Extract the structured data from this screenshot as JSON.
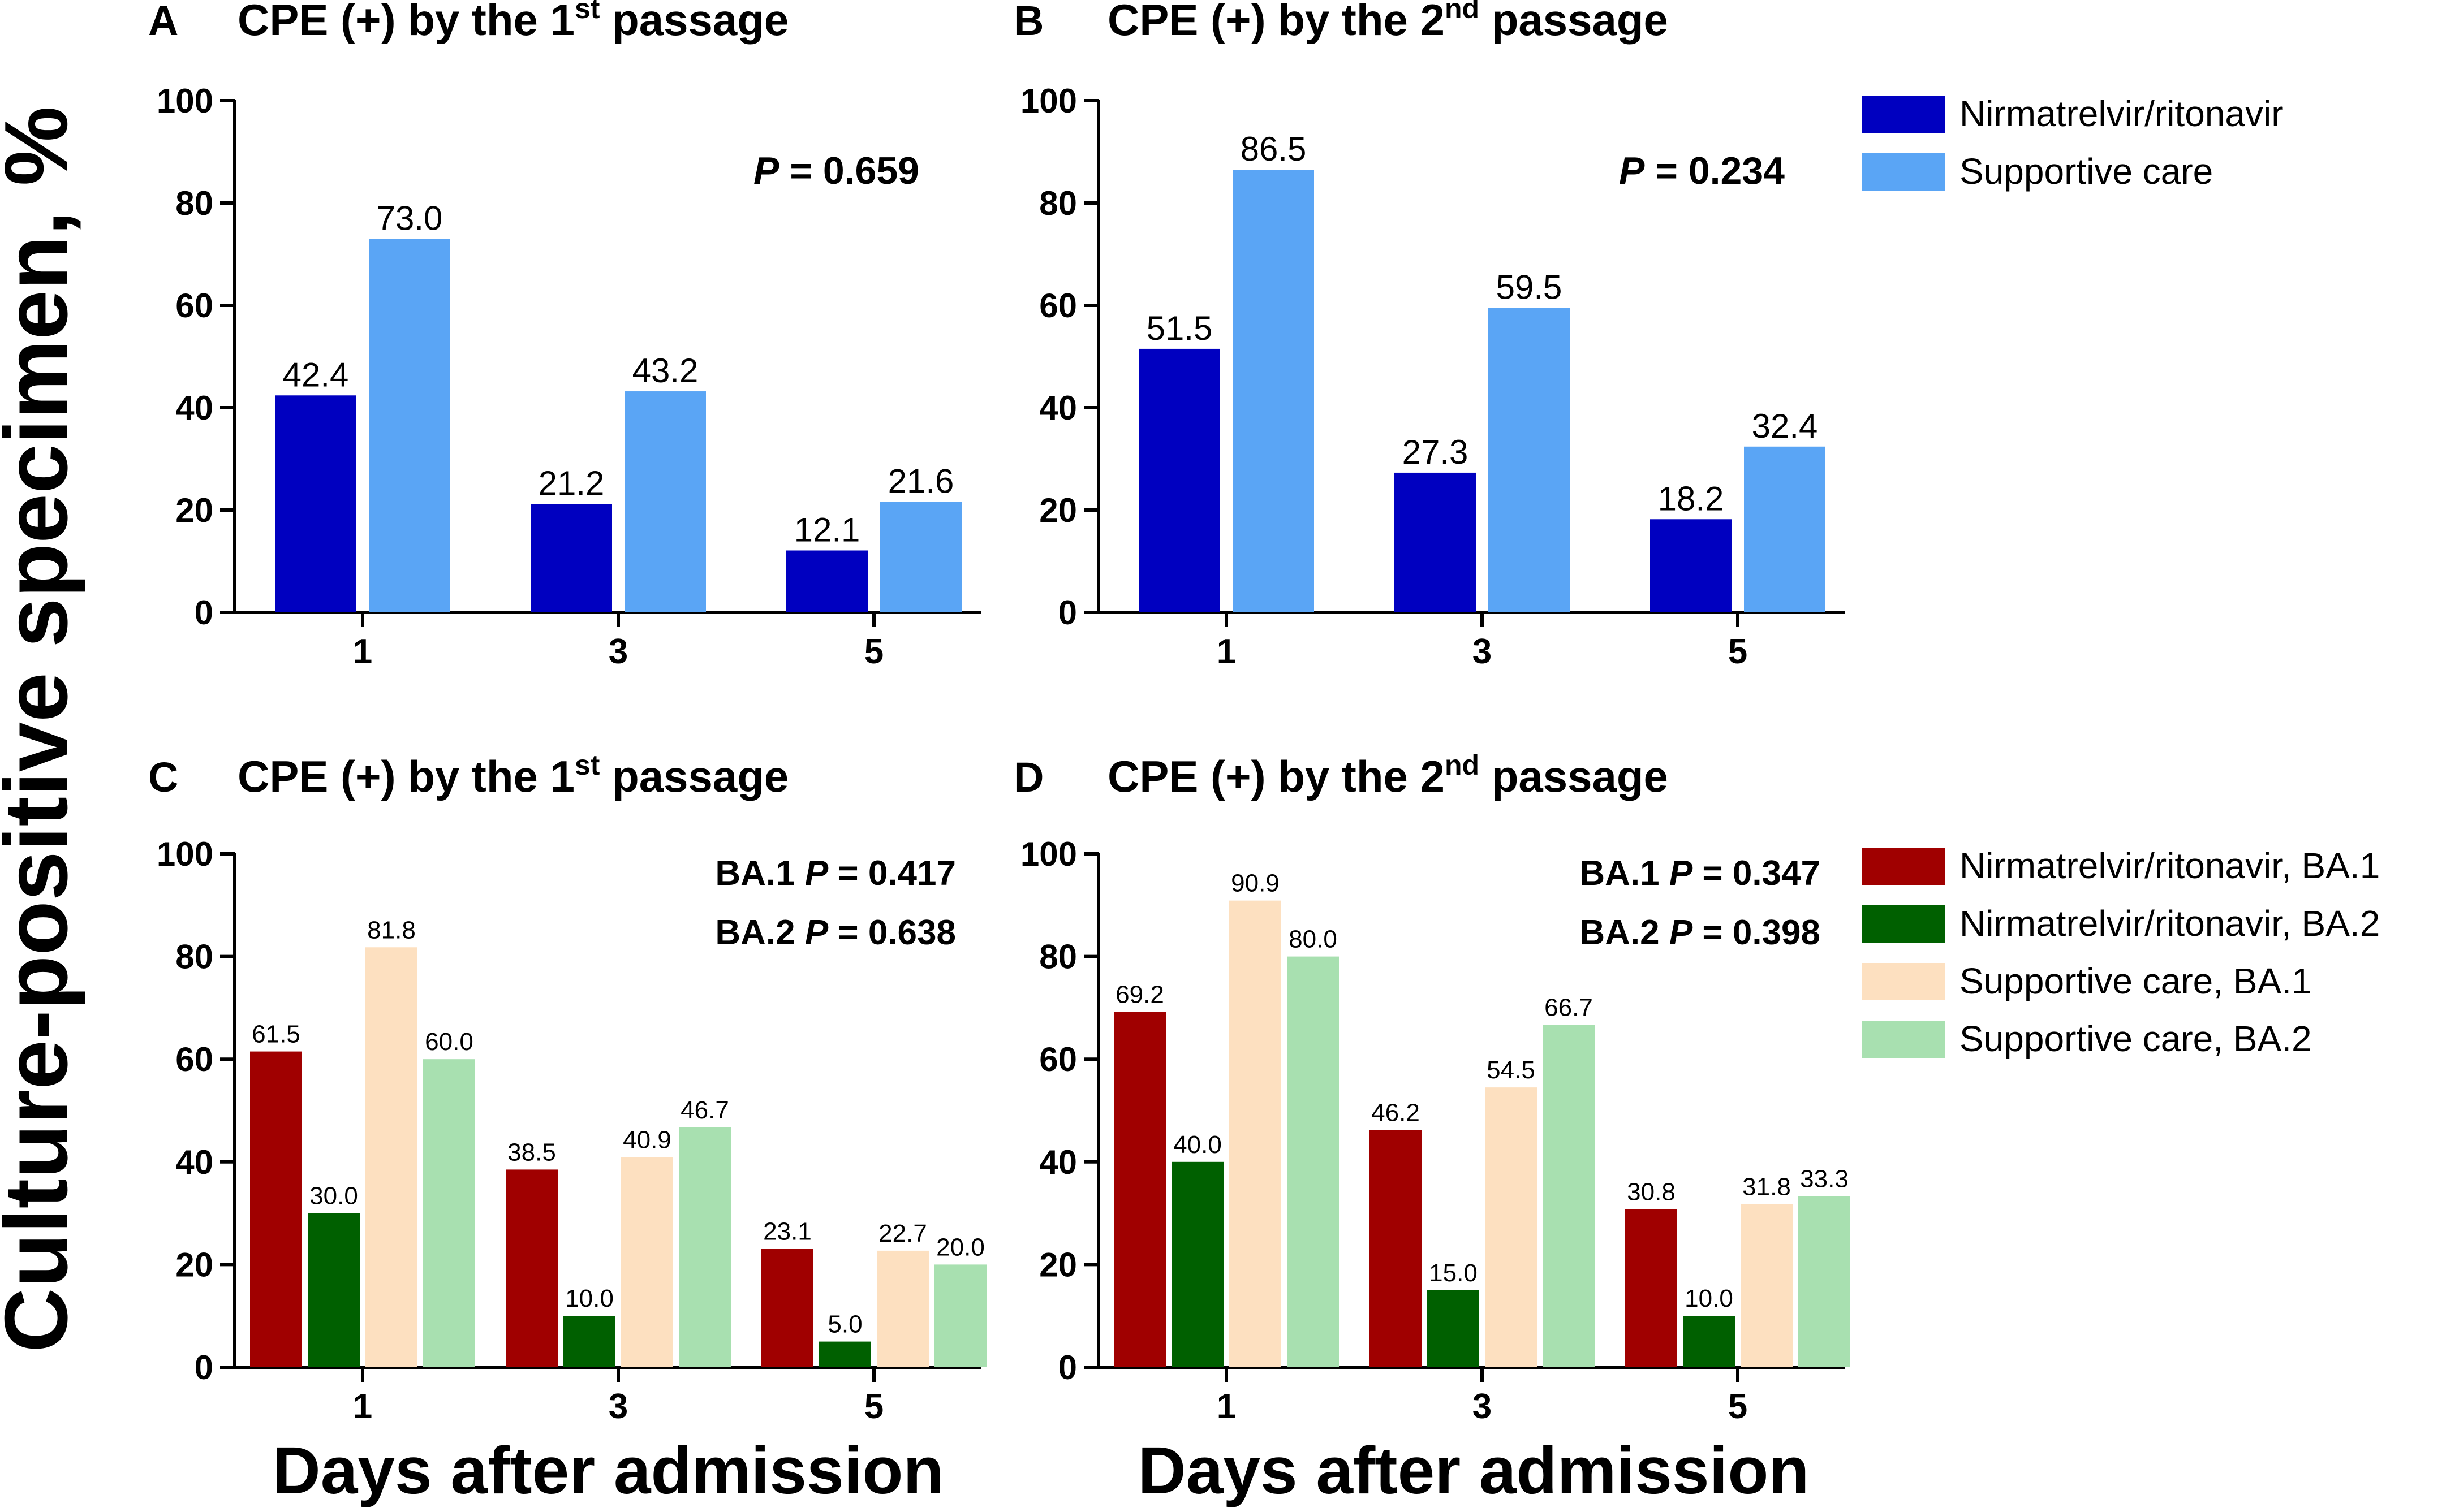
{
  "figure": {
    "ylabel": "Culture-positive specimen, %",
    "xlabel": "Days after admission"
  },
  "legend_top": [
    {
      "label": "Nirmatrelvir/ritonavir",
      "color": "#0000c0"
    },
    {
      "label": "Supportive care",
      "color": "#5aa5f5"
    }
  ],
  "legend_bottom": [
    {
      "label": "Nirmatrelvir/ritonavir, BA.1",
      "color": "#a00000"
    },
    {
      "label": "Nirmatrelvir/ritonavir, BA.2",
      "color": "#006000"
    },
    {
      "label": "Supportive care, BA.1",
      "color": "#fde0c0"
    },
    {
      "label": "Supportive care, BA.2",
      "color": "#a8e0b0"
    }
  ],
  "chart_data": [
    {
      "type": "bar",
      "panel": "A",
      "title_pre": "CPE (+) by the 1",
      "title_sup": "st",
      "title_post": " passage",
      "categories": [
        "1",
        "3",
        "5"
      ],
      "ylim": [
        0,
        100
      ],
      "yticks": [
        "0",
        "20",
        "40",
        "60",
        "80",
        "100"
      ],
      "series": [
        {
          "name": "Nirmatrelvir/ritonavir",
          "color": "#0000c0",
          "values": [
            42.4,
            21.2,
            12.1
          ],
          "labels": [
            "42.4",
            "21.2",
            "12.1"
          ]
        },
        {
          "name": "Supportive care",
          "color": "#5aa5f5",
          "values": [
            73.0,
            43.2,
            21.6
          ],
          "labels": [
            "73.0",
            "43.2",
            "21.6"
          ]
        }
      ],
      "annotations": [
        {
          "prefix": "",
          "italic": "P",
          "rest": " = 0.659"
        }
      ]
    },
    {
      "type": "bar",
      "panel": "B",
      "title_pre": "CPE (+) by the 2",
      "title_sup": "nd",
      "title_post": " passage",
      "categories": [
        "1",
        "3",
        "5"
      ],
      "ylim": [
        0,
        100
      ],
      "yticks": [
        "0",
        "20",
        "40",
        "60",
        "80",
        "100"
      ],
      "series": [
        {
          "name": "Nirmatrelvir/ritonavir",
          "color": "#0000c0",
          "values": [
            51.5,
            27.3,
            18.2
          ],
          "labels": [
            "51.5",
            "27.3",
            "18.2"
          ]
        },
        {
          "name": "Supportive care",
          "color": "#5aa5f5",
          "values": [
            86.5,
            59.5,
            32.4
          ],
          "labels": [
            "86.5",
            "59.5",
            "32.4"
          ]
        }
      ],
      "annotations": [
        {
          "prefix": "",
          "italic": "P",
          "rest": " = 0.234"
        }
      ]
    },
    {
      "type": "bar",
      "panel": "C",
      "title_pre": "CPE (+) by the 1",
      "title_sup": "st",
      "title_post": " passage",
      "categories": [
        "1",
        "3",
        "5"
      ],
      "ylim": [
        0,
        100
      ],
      "yticks": [
        "0",
        "20",
        "40",
        "60",
        "80",
        "100"
      ],
      "series": [
        {
          "name": "Nirmatrelvir/ritonavir, BA.1",
          "color": "#a00000",
          "values": [
            61.5,
            38.5,
            23.1
          ],
          "labels": [
            "61.5",
            "38.5",
            "23.1"
          ]
        },
        {
          "name": "Nirmatrelvir/ritonavir, BA.2",
          "color": "#006000",
          "values": [
            30.0,
            10.0,
            5.0
          ],
          "labels": [
            "30.0",
            "10.0",
            "5.0"
          ]
        },
        {
          "name": "Supportive care, BA.1",
          "color": "#fde0c0",
          "values": [
            81.8,
            40.9,
            22.7
          ],
          "labels": [
            "81.8",
            "40.9",
            "22.7"
          ]
        },
        {
          "name": "Supportive care, BA.2",
          "color": "#a8e0b0",
          "values": [
            60.0,
            46.7,
            20.0
          ],
          "labels": [
            "60.0",
            "46.7",
            "20.0"
          ]
        }
      ],
      "annotations": [
        {
          "prefix": "BA.1 ",
          "italic": "P",
          "rest": " = 0.417"
        },
        {
          "prefix": "BA.2 ",
          "italic": "P",
          "rest": " = 0.638"
        }
      ]
    },
    {
      "type": "bar",
      "panel": "D",
      "title_pre": "CPE (+) by the 2",
      "title_sup": "nd",
      "title_post": " passage",
      "categories": [
        "1",
        "3",
        "5"
      ],
      "ylim": [
        0,
        100
      ],
      "yticks": [
        "0",
        "20",
        "40",
        "60",
        "80",
        "100"
      ],
      "series": [
        {
          "name": "Nirmatrelvir/ritonavir, BA.1",
          "color": "#a00000",
          "values": [
            69.2,
            46.2,
            30.8
          ],
          "labels": [
            "69.2",
            "46.2",
            "30.8"
          ]
        },
        {
          "name": "Nirmatrelvir/ritonavir, BA.2",
          "color": "#006000",
          "values": [
            40.0,
            15.0,
            10.0
          ],
          "labels": [
            "40.0",
            "15.0",
            "10.0"
          ]
        },
        {
          "name": "Supportive care, BA.1",
          "color": "#fde0c0",
          "values": [
            90.9,
            54.5,
            31.8
          ],
          "labels": [
            "90.9",
            "54.5",
            "31.8"
          ]
        },
        {
          "name": "Supportive care, BA.2",
          "color": "#a8e0b0",
          "values": [
            80.0,
            66.7,
            33.3
          ],
          "labels": [
            "80.0",
            "66.7",
            "33.3"
          ]
        }
      ],
      "annotations": [
        {
          "prefix": "BA.1 ",
          "italic": "P",
          "rest": " = 0.347"
        },
        {
          "prefix": "BA.2 ",
          "italic": "P",
          "rest": " = 0.398"
        }
      ]
    }
  ]
}
